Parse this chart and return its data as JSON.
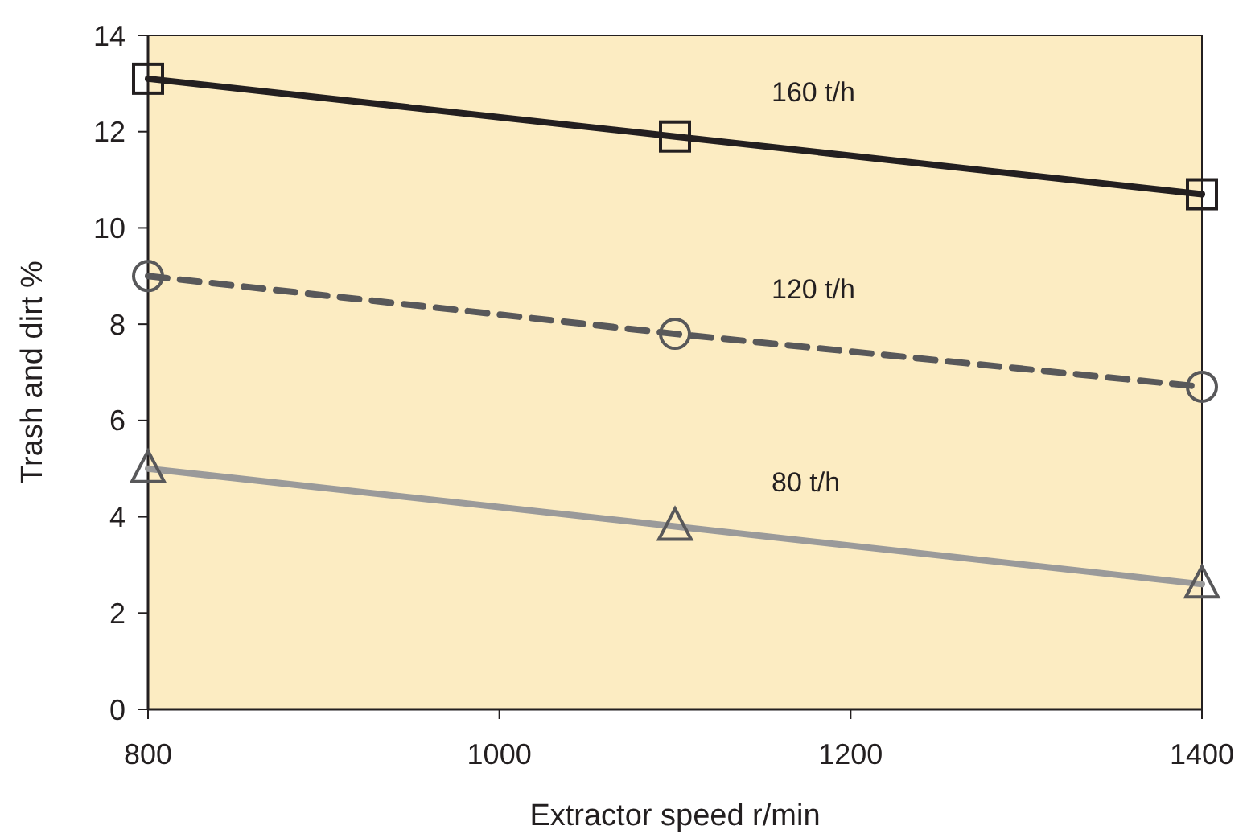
{
  "chart_data": {
    "type": "line",
    "xlabel": "Extractor speed r/min",
    "ylabel": "Trash and dirt %",
    "x": [
      800,
      1100,
      1400
    ],
    "xlim": [
      800,
      1400
    ],
    "xticks": [
      800,
      1000,
      1200,
      1400
    ],
    "ylim": [
      0,
      14
    ],
    "yticks": [
      0,
      2,
      4,
      6,
      8,
      10,
      12,
      14
    ],
    "series": [
      {
        "name": "160 t/h",
        "color": "#231f20",
        "values": [
          13.1,
          11.9,
          10.7
        ],
        "marker": "square",
        "line_style": "solid"
      },
      {
        "name": "120 t/h",
        "color": "#58585a",
        "values": [
          9.0,
          7.8,
          6.7
        ],
        "marker": "circle",
        "line_style": "dashed"
      },
      {
        "name": "80 t/h",
        "color": "#9a9a9a",
        "values": [
          5.0,
          3.8,
          2.6
        ],
        "marker": "triangle",
        "line_style": "solid"
      }
    ]
  }
}
